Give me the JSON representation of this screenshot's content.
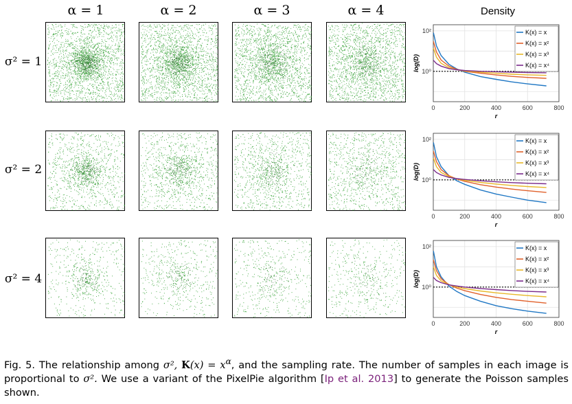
{
  "column_headers": [
    "α = 1",
    "α = 2",
    "α = 3",
    "α = 4"
  ],
  "row_headers": [
    "σ² = 1",
    "σ² = 2",
    "σ² = 4"
  ],
  "density_title": "Density",
  "sample_color": "#2e9e2e",
  "chart_data": [
    {
      "type": "line",
      "xlabel": "r",
      "ylabel": "log(D)",
      "xlim": [
        0,
        800
      ],
      "xticks": [
        "0",
        "200",
        "400",
        "600",
        "800"
      ],
      "yticks": [
        "10²",
        "10⁰"
      ],
      "yscale": "log",
      "grid": true,
      "legend_position": "top-right",
      "reference_line": {
        "value": 1,
        "style": "dotted",
        "color": "#000000"
      },
      "series": [
        {
          "name": "K(x) = x",
          "color": "#1f77c4",
          "x": [
            1,
            20,
            50,
            100,
            150,
            200,
            300,
            400,
            500,
            600,
            720
          ],
          "y": [
            80,
            18,
            6,
            2.2,
            1.3,
            0.9,
            0.55,
            0.4,
            0.3,
            0.24,
            0.19
          ]
        },
        {
          "name": "K(x) = x²",
          "color": "#e0602a",
          "x": [
            1,
            20,
            50,
            100,
            150,
            200,
            300,
            400,
            500,
            600,
            720
          ],
          "y": [
            30,
            9,
            3.6,
            1.8,
            1.25,
            1.0,
            0.8,
            0.66,
            0.56,
            0.5,
            0.45
          ]
        },
        {
          "name": "K(x) = x³",
          "color": "#e8b82a",
          "x": [
            1,
            20,
            50,
            100,
            150,
            200,
            300,
            400,
            500,
            600,
            720
          ],
          "y": [
            14,
            5,
            2.5,
            1.5,
            1.2,
            1.05,
            0.9,
            0.8,
            0.72,
            0.67,
            0.63
          ]
        },
        {
          "name": "K(x) = x⁴",
          "color": "#7a2a8a",
          "x": [
            1,
            20,
            50,
            100,
            150,
            200,
            300,
            400,
            500,
            600,
            720
          ],
          "y": [
            3.5,
            2.4,
            1.8,
            1.35,
            1.2,
            1.1,
            1.0,
            0.95,
            0.9,
            0.87,
            0.85
          ]
        }
      ]
    },
    {
      "type": "line",
      "xlabel": "r",
      "ylabel": "log(D)",
      "xlim": [
        0,
        800
      ],
      "xticks": [
        "0",
        "200",
        "400",
        "600",
        "800"
      ],
      "yticks": [
        "10²",
        "10⁰"
      ],
      "yscale": "log",
      "grid": true,
      "legend_position": "top-right",
      "reference_line": {
        "value": 1,
        "style": "dotted",
        "color": "#000000"
      },
      "series": [
        {
          "name": "K(x) = x",
          "color": "#1f77c4",
          "x": [
            1,
            20,
            50,
            100,
            150,
            200,
            300,
            400,
            500,
            600,
            720
          ],
          "y": [
            70,
            14,
            4.5,
            1.6,
            0.9,
            0.6,
            0.32,
            0.2,
            0.14,
            0.1,
            0.075
          ]
        },
        {
          "name": "K(x) = x²",
          "color": "#e0602a",
          "x": [
            1,
            20,
            50,
            100,
            150,
            200,
            300,
            400,
            500,
            600,
            720
          ],
          "y": [
            26,
            8,
            3.2,
            1.6,
            1.1,
            0.85,
            0.58,
            0.44,
            0.35,
            0.29,
            0.24
          ]
        },
        {
          "name": "K(x) = x³",
          "color": "#e8b82a",
          "x": [
            1,
            20,
            50,
            100,
            150,
            200,
            300,
            400,
            500,
            600,
            720
          ],
          "y": [
            12,
            4.5,
            2.3,
            1.45,
            1.12,
            0.95,
            0.75,
            0.62,
            0.53,
            0.47,
            0.42
          ]
        },
        {
          "name": "K(x) = x⁴",
          "color": "#7a2a8a",
          "x": [
            1,
            20,
            50,
            100,
            150,
            200,
            300,
            400,
            500,
            600,
            720
          ],
          "y": [
            3.2,
            2.3,
            1.75,
            1.32,
            1.15,
            1.05,
            0.9,
            0.8,
            0.73,
            0.68,
            0.64
          ]
        }
      ]
    },
    {
      "type": "line",
      "xlabel": "r",
      "ylabel": "log(D)",
      "xlim": [
        0,
        800
      ],
      "xticks": [
        "0",
        "200",
        "400",
        "600",
        "800"
      ],
      "yticks": [
        "10²",
        "10⁰"
      ],
      "yscale": "log",
      "grid": true,
      "legend_position": "top-right",
      "reference_line": {
        "value": 1,
        "style": "dotted",
        "color": "#000000"
      },
      "series": [
        {
          "name": "K(x) = x",
          "color": "#1f77c4",
          "x": [
            1,
            20,
            50,
            100,
            150,
            200,
            300,
            400,
            500,
            600,
            720
          ],
          "y": [
            60,
            10,
            3.2,
            1.1,
            0.6,
            0.38,
            0.2,
            0.12,
            0.085,
            0.065,
            0.05
          ]
        },
        {
          "name": "K(x) = x²",
          "color": "#e0602a",
          "x": [
            1,
            20,
            50,
            100,
            150,
            200,
            300,
            400,
            500,
            600,
            720
          ],
          "y": [
            22,
            6.5,
            2.6,
            1.3,
            0.88,
            0.66,
            0.43,
            0.31,
            0.24,
            0.2,
            0.16
          ]
        },
        {
          "name": "K(x) = x³",
          "color": "#e8b82a",
          "x": [
            1,
            20,
            50,
            100,
            150,
            200,
            300,
            400,
            500,
            600,
            720
          ],
          "y": [
            10,
            3.8,
            2.0,
            1.3,
            1.0,
            0.84,
            0.64,
            0.52,
            0.44,
            0.38,
            0.33
          ]
        },
        {
          "name": "K(x) = x⁴",
          "color": "#7a2a8a",
          "x": [
            1,
            20,
            50,
            100,
            150,
            200,
            300,
            400,
            500,
            600,
            720
          ],
          "y": [
            3.0,
            2.1,
            1.65,
            1.28,
            1.12,
            1.0,
            0.85,
            0.75,
            0.67,
            0.61,
            0.57
          ]
        }
      ]
    }
  ],
  "caption": {
    "fig_label": "Fig. 5.",
    "part1": "The relationship among",
    "sigma2": "σ²,",
    "kx": "K",
    "kx_rest": "(x) = x",
    "alpha": "α",
    "part2": ", and the sampling rate. The number of samples in each image is proportional to",
    "sigma2b": "σ².",
    "part3": "We use a variant of the PixelPie algorithm [",
    "citation": "Ip et al. 2013",
    "part4": "] to generate the Poisson samples shown."
  }
}
